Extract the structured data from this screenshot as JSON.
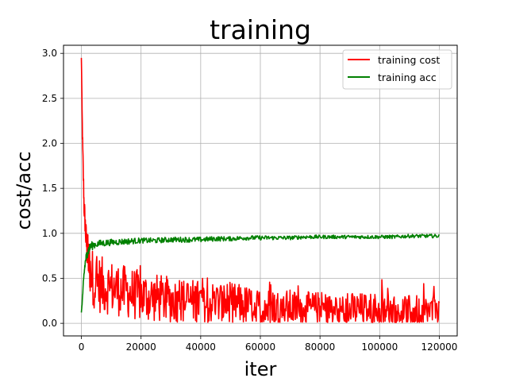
{
  "chart_data": {
    "type": "line",
    "title": "training",
    "xlabel": "iter",
    "ylabel": "cost/acc",
    "xlim": [
      -6000,
      126000
    ],
    "ylim": [
      -0.14,
      3.09
    ],
    "xticks": [
      0,
      20000,
      40000,
      60000,
      80000,
      100000,
      120000
    ],
    "xtick_labels": [
      "0",
      "20000",
      "40000",
      "60000",
      "80000",
      "100000",
      "120000"
    ],
    "yticks": [
      0.0,
      0.5,
      1.0,
      1.5,
      2.0,
      2.5,
      3.0
    ],
    "ytick_labels": [
      "0.0",
      "0.5",
      "1.0",
      "1.5",
      "2.0",
      "2.5",
      "3.0"
    ],
    "grid": true,
    "legend_position": "top-right",
    "series": [
      {
        "name": "training cost",
        "color": "#ff0000",
        "x": [
          0,
          300,
          600,
          900,
          1200,
          1500,
          2000,
          2500,
          3000,
          4000,
          5000,
          7000,
          10000,
          15000,
          20000,
          25000,
          30000,
          35000,
          40000,
          45000,
          50000,
          55000,
          60000,
          65000,
          70000,
          75000,
          80000,
          85000,
          90000,
          95000,
          100000,
          105000,
          110000,
          115000,
          120000
        ],
        "values": [
          2.95,
          2.2,
          1.7,
          1.3,
          1.15,
          0.95,
          0.8,
          0.68,
          0.58,
          0.5,
          0.45,
          0.42,
          0.4,
          0.35,
          0.3,
          0.28,
          0.26,
          0.25,
          0.24,
          0.23,
          0.22,
          0.2,
          0.18,
          0.17,
          0.17,
          0.16,
          0.16,
          0.16,
          0.15,
          0.15,
          0.15,
          0.14,
          0.14,
          0.13,
          0.13
        ],
        "noise": [
          0.0,
          0.05,
          0.06,
          0.08,
          0.1,
          0.12,
          0.14,
          0.16,
          0.18,
          0.2,
          0.2,
          0.2,
          0.19,
          0.18,
          0.18,
          0.17,
          0.16,
          0.16,
          0.15,
          0.15,
          0.15,
          0.14,
          0.13,
          0.13,
          0.13,
          0.12,
          0.12,
          0.12,
          0.12,
          0.12,
          0.12,
          0.12,
          0.11,
          0.11,
          0.11
        ]
      },
      {
        "name": "training acc",
        "color": "#008000",
        "x": [
          0,
          300,
          600,
          900,
          1200,
          1500,
          2000,
          2500,
          3000,
          4000,
          5000,
          7000,
          10000,
          15000,
          20000,
          25000,
          30000,
          35000,
          40000,
          45000,
          50000,
          55000,
          60000,
          65000,
          70000,
          75000,
          80000,
          85000,
          90000,
          95000,
          100000,
          105000,
          110000,
          115000,
          120000
        ],
        "values": [
          0.12,
          0.25,
          0.4,
          0.55,
          0.65,
          0.72,
          0.78,
          0.82,
          0.85,
          0.87,
          0.88,
          0.89,
          0.9,
          0.91,
          0.92,
          0.92,
          0.93,
          0.93,
          0.93,
          0.94,
          0.94,
          0.95,
          0.95,
          0.95,
          0.95,
          0.96,
          0.96,
          0.96,
          0.96,
          0.96,
          0.96,
          0.96,
          0.97,
          0.97,
          0.97
        ],
        "noise": [
          0.0,
          0.03,
          0.04,
          0.05,
          0.05,
          0.05,
          0.05,
          0.05,
          0.05,
          0.045,
          0.04,
          0.04,
          0.035,
          0.035,
          0.03,
          0.03,
          0.03,
          0.03,
          0.028,
          0.028,
          0.025,
          0.025,
          0.025,
          0.022,
          0.022,
          0.022,
          0.02,
          0.02,
          0.02,
          0.02,
          0.02,
          0.02,
          0.02,
          0.02,
          0.02
        ]
      }
    ]
  }
}
